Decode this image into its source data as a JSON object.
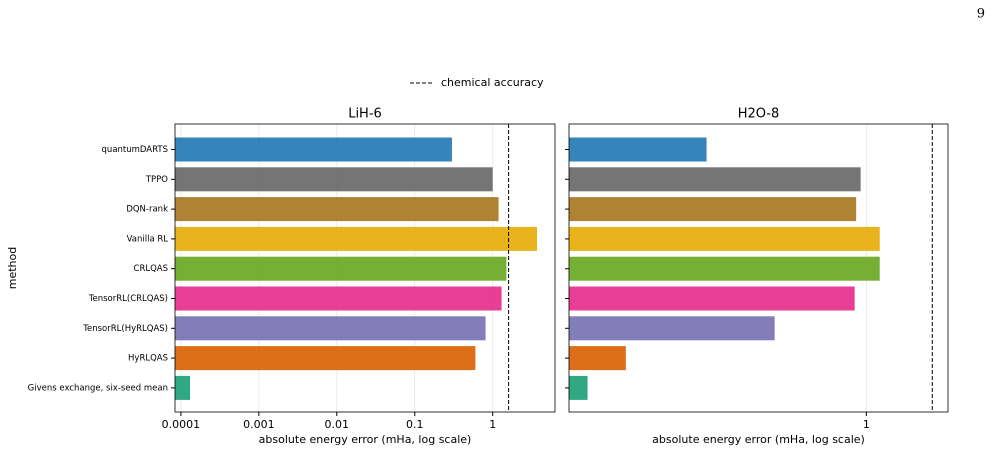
{
  "page_number": "9",
  "chart_data": [
    {
      "type": "bar",
      "orientation": "horizontal",
      "title": "LiH-6",
      "ylabel": "method",
      "xlabel": "absolute energy error (mHa, log scale)",
      "log_x": true,
      "grid": true,
      "categories": [
        "quantumDARTS",
        "TPPO",
        "DQN-rank",
        "Vanilla RL",
        "CRLQAS",
        "TensorRL(CRLQAS)",
        "TensorRL(HyRLQAS)",
        "HyRLQAS",
        "Givens exchange, six-seed mean"
      ],
      "values": [
        0.3,
        1.0,
        1.19,
        3.7,
        1.5,
        1.3,
        0.81,
        0.6,
        0.000131
      ],
      "colors": [
        "#1f77b4",
        "#666666",
        "#a6761d",
        "#e6ab02",
        "#66a61e",
        "#e7298a",
        "#7570b3",
        "#d95f02",
        "#1b9e77"
      ],
      "xlim": [
        8.4e-05,
        6.3
      ],
      "xticks": [
        0.0001,
        0.001,
        0.01,
        0.1,
        1
      ],
      "reference_line": {
        "value": 1.6,
        "label": "chemical accuracy"
      }
    },
    {
      "type": "bar",
      "orientation": "horizontal",
      "title": "H2O-8",
      "xlabel": "absolute energy error (mHa, log scale)",
      "log_x": true,
      "grid": true,
      "categories": [
        null,
        null,
        null,
        null,
        null,
        null,
        null,
        null,
        null
      ],
      "values": [
        0.32,
        0.96,
        0.93,
        1.1,
        1.1,
        0.92,
        0.52,
        0.18,
        0.137
      ],
      "colors": [
        "#1f77b4",
        "#666666",
        "#a6761d",
        "#e6ab02",
        "#66a61e",
        "#e7298a",
        "#7570b3",
        "#d95f02",
        "#1b9e77"
      ],
      "xlim": [
        0.12,
        1.79
      ],
      "xticks": [
        1
      ],
      "reference_line": {
        "value": 1.6
      }
    }
  ]
}
